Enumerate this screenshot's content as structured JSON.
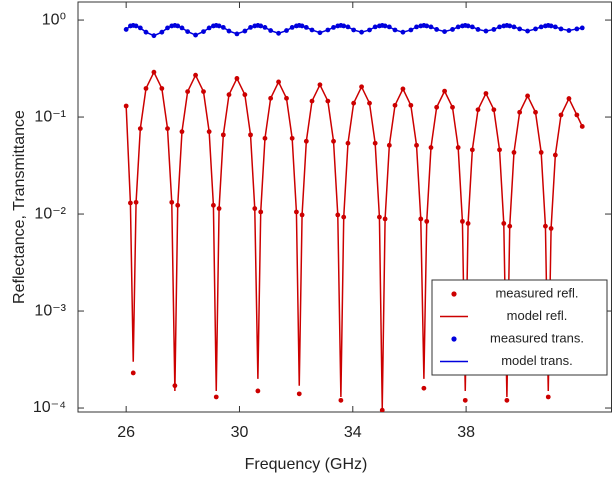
{
  "chart_data": {
    "type": "line",
    "xlabel": "Frequency (GHz)",
    "ylabel": "Reflectance, Transmittance",
    "yscale": "log",
    "grid": false,
    "legend": "lower right",
    "xlim": [
      24.3,
      43.15
    ],
    "xticks": [
      26,
      30,
      34,
      38
    ],
    "ylim": [
      9.1e-05,
      1.535
    ],
    "yticks": [
      {
        "value": 1,
        "label": "10⁰"
      },
      {
        "value": 0.1,
        "label": "10⁻¹"
      },
      {
        "value": 0.01,
        "label": "10⁻²"
      },
      {
        "value": 0.001,
        "label": "10⁻³"
      },
      {
        "value": 0.0001,
        "label": "10⁻⁴"
      }
    ],
    "x": [
      26.0,
      26.15,
      26.25,
      26.35,
      26.5,
      26.7,
      26.98,
      27.26,
      27.46,
      27.61,
      27.72,
      27.82,
      27.97,
      28.17,
      28.45,
      28.73,
      28.93,
      29.08,
      29.18,
      29.28,
      29.43,
      29.63,
      29.91,
      30.19,
      30.39,
      30.54,
      30.65,
      30.75,
      30.9,
      31.1,
      31.38,
      31.66,
      31.86,
      32.01,
      32.11,
      32.21,
      32.36,
      32.56,
      32.84,
      33.12,
      33.32,
      33.47,
      33.58,
      33.68,
      33.83,
      34.03,
      34.31,
      34.59,
      34.79,
      34.94,
      35.04,
      35.14,
      35.29,
      35.49,
      35.77,
      36.05,
      36.25,
      36.4,
      36.51,
      36.61,
      36.76,
      36.96,
      37.24,
      37.52,
      37.72,
      37.87,
      37.97,
      38.07,
      38.22,
      38.42,
      38.7,
      38.98,
      39.18,
      39.33,
      39.44,
      39.54,
      39.69,
      39.89,
      40.17,
      40.45,
      40.65,
      40.8,
      40.9,
      41.0,
      41.15,
      41.35,
      41.63,
      41.91,
      42.1
    ],
    "series": [
      {
        "name": "measured refl.",
        "color": "#cc0000",
        "mode": "markers",
        "values": [
          0.13,
          0.013,
          0.00023,
          0.0132,
          0.076,
          0.197,
          0.29,
          0.197,
          0.076,
          0.0132,
          0.00017,
          0.0123,
          0.0707,
          0.183,
          0.27,
          0.183,
          0.0707,
          0.0123,
          0.00013,
          0.0114,
          0.0655,
          0.17,
          0.25,
          0.17,
          0.0655,
          0.0114,
          0.00015,
          0.0105,
          0.0603,
          0.156,
          0.23,
          0.156,
          0.0603,
          0.0105,
          0.00014,
          0.0098,
          0.0563,
          0.146,
          0.215,
          0.146,
          0.0563,
          0.0098,
          0.00012,
          0.0093,
          0.0537,
          0.139,
          0.205,
          0.139,
          0.0537,
          0.0093,
          9.5e-05,
          0.0089,
          0.0511,
          0.132,
          0.195,
          0.132,
          0.0511,
          0.0089,
          0.00016,
          0.0084,
          0.0485,
          0.126,
          0.185,
          0.126,
          0.0485,
          0.0084,
          0.00012,
          0.008,
          0.0459,
          0.119,
          0.175,
          0.119,
          0.0459,
          0.008,
          0.00012,
          0.0075,
          0.0432,
          0.112,
          0.165,
          0.112,
          0.0432,
          0.0075,
          0.00013,
          0.0071,
          0.0406,
          0.105,
          0.155,
          0.105,
          0.08
        ]
      },
      {
        "name": "model refl.",
        "color": "#cc0000",
        "mode": "lines",
        "values": [
          0.13,
          0.013,
          0.0003,
          0.0132,
          0.076,
          0.197,
          0.29,
          0.197,
          0.076,
          0.0132,
          0.00015,
          0.0123,
          0.0707,
          0.183,
          0.27,
          0.183,
          0.0707,
          0.0123,
          0.00015,
          0.0114,
          0.0655,
          0.17,
          0.25,
          0.17,
          0.0655,
          0.0114,
          0.0002,
          0.0105,
          0.0603,
          0.156,
          0.23,
          0.156,
          0.0603,
          0.0105,
          0.00017,
          0.0098,
          0.0563,
          0.146,
          0.215,
          0.146,
          0.0563,
          0.0098,
          0.00013,
          0.0093,
          0.0537,
          0.139,
          0.205,
          0.139,
          0.0537,
          0.0093,
          0.0001,
          0.0089,
          0.0511,
          0.132,
          0.195,
          0.132,
          0.0511,
          0.0089,
          0.0002,
          0.0084,
          0.0485,
          0.126,
          0.185,
          0.126,
          0.0485,
          0.0084,
          0.00015,
          0.008,
          0.0459,
          0.119,
          0.175,
          0.119,
          0.0459,
          0.008,
          0.00013,
          0.0075,
          0.0432,
          0.112,
          0.165,
          0.112,
          0.0432,
          0.0075,
          0.00015,
          0.0071,
          0.0406,
          0.105,
          0.155,
          0.105,
          0.08
        ]
      },
      {
        "name": "measured trans.",
        "color": "#0000dd",
        "mode": "markers",
        "values": [
          0.8,
          0.87,
          0.88,
          0.87,
          0.83,
          0.75,
          0.69,
          0.75,
          0.83,
          0.87,
          0.88,
          0.87,
          0.83,
          0.76,
          0.7,
          0.76,
          0.83,
          0.87,
          0.88,
          0.87,
          0.84,
          0.77,
          0.72,
          0.77,
          0.84,
          0.87,
          0.88,
          0.87,
          0.84,
          0.78,
          0.73,
          0.78,
          0.84,
          0.87,
          0.88,
          0.87,
          0.84,
          0.79,
          0.74,
          0.79,
          0.84,
          0.87,
          0.88,
          0.87,
          0.85,
          0.79,
          0.75,
          0.79,
          0.85,
          0.87,
          0.88,
          0.87,
          0.85,
          0.79,
          0.75,
          0.79,
          0.85,
          0.87,
          0.88,
          0.87,
          0.85,
          0.8,
          0.76,
          0.8,
          0.85,
          0.87,
          0.88,
          0.87,
          0.85,
          0.8,
          0.77,
          0.8,
          0.85,
          0.87,
          0.88,
          0.87,
          0.85,
          0.81,
          0.77,
          0.81,
          0.85,
          0.87,
          0.88,
          0.87,
          0.85,
          0.81,
          0.78,
          0.81,
          0.83
        ]
      },
      {
        "name": "model trans.",
        "color": "#0000dd",
        "mode": "lines",
        "values": [
          0.8,
          0.87,
          0.88,
          0.87,
          0.83,
          0.75,
          0.69,
          0.75,
          0.83,
          0.87,
          0.88,
          0.87,
          0.83,
          0.76,
          0.7,
          0.76,
          0.83,
          0.87,
          0.88,
          0.87,
          0.84,
          0.77,
          0.72,
          0.77,
          0.84,
          0.87,
          0.88,
          0.87,
          0.84,
          0.78,
          0.73,
          0.78,
          0.84,
          0.87,
          0.88,
          0.87,
          0.84,
          0.79,
          0.74,
          0.79,
          0.84,
          0.87,
          0.88,
          0.87,
          0.85,
          0.79,
          0.75,
          0.79,
          0.85,
          0.87,
          0.88,
          0.87,
          0.85,
          0.79,
          0.75,
          0.79,
          0.85,
          0.87,
          0.88,
          0.87,
          0.85,
          0.8,
          0.76,
          0.8,
          0.85,
          0.87,
          0.88,
          0.87,
          0.85,
          0.8,
          0.77,
          0.8,
          0.85,
          0.87,
          0.88,
          0.87,
          0.85,
          0.81,
          0.77,
          0.81,
          0.85,
          0.87,
          0.88,
          0.87,
          0.85,
          0.81,
          0.78,
          0.81,
          0.83
        ]
      }
    ]
  }
}
